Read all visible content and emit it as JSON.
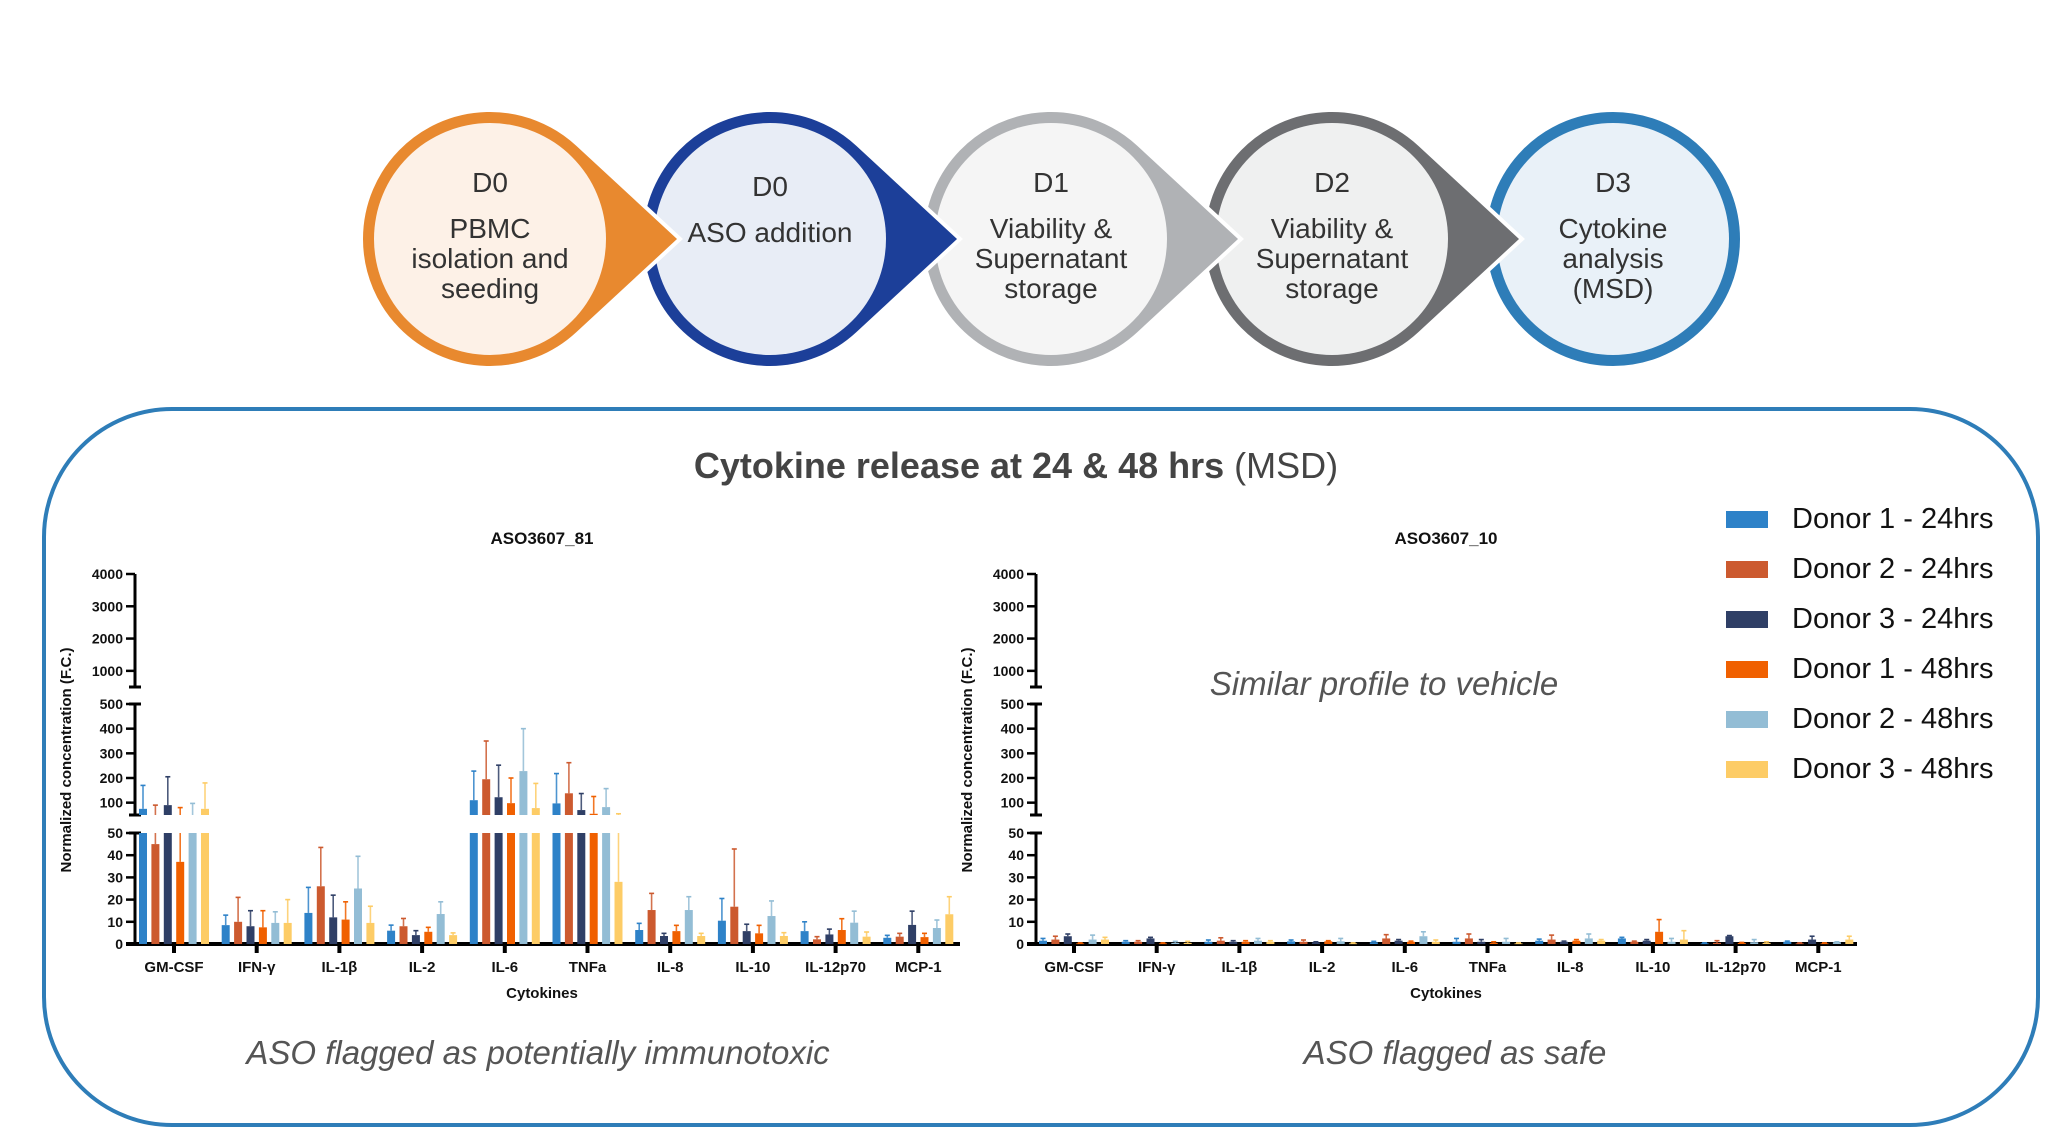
{
  "workflow": {
    "steps": [
      {
        "day": "D0",
        "label": "PBMC isolation and seeding",
        "lines": [
          "PBMC",
          "isolation and",
          "seeding"
        ],
        "ring_color": "#E8892F",
        "fill_color": "#FDF1E7"
      },
      {
        "day": "D0",
        "label": "ASO addition",
        "lines": [
          "ASO addition"
        ],
        "ring_color": "#1C3F99",
        "fill_color": "#E8EDF6"
      },
      {
        "day": "D1",
        "label": "Viability & Supernatant storage",
        "lines": [
          "Viability &",
          "Supernatant",
          "storage"
        ],
        "ring_color": "#B0B2B5",
        "fill_color": "#F5F5F5"
      },
      {
        "day": "D2",
        "label": "Viability & Supernatant storage",
        "lines": [
          "Viability &",
          "Supernatant",
          "storage"
        ],
        "ring_color": "#6D6E71",
        "fill_color": "#EFF0F0"
      },
      {
        "day": "D3",
        "label": "Cytokine analysis (MSD)",
        "lines": [
          "Cytokine",
          "analysis",
          "(MSD)"
        ],
        "ring_color": "#2E7DB8",
        "fill_color": "#E9F1F8"
      }
    ]
  },
  "panel": {
    "title_bold": "Cytokine release at 24 & 48 hrs",
    "title_normal": " (MSD)",
    "border_color": "#2E7DB8",
    "note_right_chart": "Similar profile to vehicle",
    "caption_left": "ASO flagged as potentially immunotoxic",
    "caption_right": "ASO flagged as safe"
  },
  "legend": [
    {
      "label": "Donor 1 - 24hrs",
      "color": "#2E82C8"
    },
    {
      "label": "Donor 2 - 24hrs",
      "color": "#CC5A2F"
    },
    {
      "label": "Donor 3 - 24hrs",
      "color": "#2F3F66"
    },
    {
      "label": "Donor 1 - 48hrs",
      "color": "#F06000"
    },
    {
      "label": "Donor 2 - 48hrs",
      "color": "#93BDD5"
    },
    {
      "label": "Donor 3 - 48hrs",
      "color": "#FDCC66"
    }
  ],
  "chart_data": [
    {
      "type": "bar",
      "title": "ASO3607_81",
      "xlabel": "Cytokines",
      "ylabel": "Normalized concentration (F.C.)",
      "y_axis": "broken",
      "y_segments": [
        {
          "range": [
            0,
            50
          ],
          "ticks": [
            "0",
            "10",
            "20",
            "30",
            "40",
            "50"
          ]
        },
        {
          "range": [
            50,
            500
          ],
          "ticks": [
            "100",
            "200",
            "300",
            "400",
            "500"
          ]
        },
        {
          "range": [
            500,
            4000
          ],
          "ticks": [
            "1000",
            "2000",
            "3000",
            "4000"
          ]
        }
      ],
      "categories": [
        "GM-CSF",
        "IFN-γ",
        "IL-1β",
        "IL-2",
        "IL-6",
        "TNFa",
        "IL-8",
        "IL-10",
        "IL-12p70",
        "MCP-1"
      ],
      "series": [
        {
          "name": "Donor 1 - 24hrs",
          "values": [
            75,
            8.5,
            14,
            6,
            110,
            97,
            6.3,
            10.5,
            5.8,
            2.8
          ],
          "error": [
            95,
            4.5,
            11.5,
            2.5,
            118,
            121,
            3,
            10,
            4.2,
            1.1
          ]
        },
        {
          "name": "Donor 2 - 24hrs",
          "values": [
            45,
            10,
            26,
            8,
            195,
            138,
            15.3,
            16.8,
            2.1,
            3.3
          ],
          "error": [
            45,
            11,
            17.5,
            3.5,
            155,
            124,
            7.5,
            26,
            1.2,
            1.5
          ]
        },
        {
          "name": "Donor 3 - 24hrs",
          "values": [
            90,
            8,
            12,
            4,
            122,
            70,
            3.6,
            5.8,
            4.3,
            8.6
          ],
          "error": [
            115,
            7,
            10,
            2,
            130,
            67,
            1.2,
            3.1,
            2.4,
            6.2
          ]
        },
        {
          "name": "Donor 1 - 48hrs",
          "values": [
            37,
            7.5,
            11,
            5.5,
            98,
            55,
            5.8,
            4.8,
            6.3,
            3.1
          ],
          "error": [
            43,
            7.5,
            8,
            2,
            102,
            70,
            2.6,
            3.6,
            5.1,
            1.7
          ]
        },
        {
          "name": "Donor 2 - 48hrs",
          "values": [
            50,
            9.5,
            25,
            13.5,
            228,
            82,
            15.3,
            12.6,
            9.6,
            7.2
          ],
          "error": [
            47,
            5,
            14.5,
            5.5,
            172,
            75,
            6,
            6.8,
            5.2,
            3.6
          ]
        },
        {
          "name": "Donor 3 - 48hrs",
          "values": [
            75,
            9.5,
            9.5,
            4,
            78,
            28,
            3.6,
            3.6,
            3.3,
            13.4
          ],
          "error": [
            105,
            10.5,
            7.5,
            1,
            100,
            27,
            1.2,
            1.5,
            2.1,
            7.9
          ]
        }
      ]
    },
    {
      "type": "bar",
      "title": "ASO3607_10",
      "xlabel": "Cytokines",
      "ylabel": "Normalized concentration (F.C.)",
      "y_axis": "broken",
      "y_segments": [
        {
          "range": [
            0,
            50
          ],
          "ticks": [
            "0",
            "10",
            "20",
            "30",
            "40",
            "50"
          ]
        },
        {
          "range": [
            50,
            500
          ],
          "ticks": [
            "100",
            "200",
            "300",
            "400",
            "500"
          ]
        },
        {
          "range": [
            500,
            4000
          ],
          "ticks": [
            "1000",
            "2000",
            "3000",
            "4000"
          ]
        }
      ],
      "categories": [
        "GM-CSF",
        "IFN-γ",
        "IL-1β",
        "IL-2",
        "IL-6",
        "TNFa",
        "IL-8",
        "IL-10",
        "IL-12p70",
        "MCP-1"
      ],
      "series": [
        {
          "name": "Donor 1 - 24hrs",
          "values": [
            1.5,
            1,
            1,
            1.2,
            0.8,
            1,
            1.5,
            2.5,
            0.3,
            1
          ],
          "error": [
            1,
            0.5,
            0.8,
            0.6,
            0.4,
            1.5,
            0.7,
            0.5,
            0.2,
            0.3
          ]
        },
        {
          "name": "Donor 2 - 24hrs",
          "values": [
            2,
            1,
            1.5,
            1,
            2.5,
            2.5,
            2,
            1,
            0.5,
            0.3
          ],
          "error": [
            1.5,
            0.5,
            1.3,
            0.8,
            1.7,
            2,
            2,
            0.3,
            1,
            0.2
          ]
        },
        {
          "name": "Donor 3 - 24hrs",
          "values": [
            3.5,
            2.5,
            1,
            0.7,
            1.5,
            1,
            1,
            1.5,
            3.5,
            2
          ],
          "error": [
            1,
            0.5,
            0.5,
            0.3,
            0.5,
            1,
            0.3,
            0.5,
            0.3,
            1.5
          ]
        },
        {
          "name": "Donor 1 - 48hrs",
          "values": [
            0.3,
            0.3,
            1,
            1.2,
            1,
            0.5,
            1.5,
            5.5,
            0.5,
            0.3
          ],
          "error": [
            0.2,
            0.2,
            0.5,
            0.3,
            0.3,
            0.5,
            0.5,
            5.5,
            0.2,
            0.2
          ]
        },
        {
          "name": "Donor 2 - 48hrs",
          "values": [
            2,
            0.5,
            1.5,
            1.2,
            3.5,
            1,
            2.5,
            1,
            0.8,
            0.8
          ],
          "error": [
            2,
            0.7,
            1,
            1.3,
            2,
            1.5,
            2,
            1.5,
            1.2,
            0.2
          ]
        },
        {
          "name": "Donor 3 - 48hrs",
          "values": [
            2,
            0.5,
            1,
            0.3,
            1,
            0.3,
            1.5,
            2,
            0.5,
            2
          ],
          "error": [
            1,
            0.7,
            0.5,
            0.2,
            0.8,
            0.2,
            0.5,
            4,
            0.5,
            1.5
          ]
        }
      ]
    }
  ]
}
